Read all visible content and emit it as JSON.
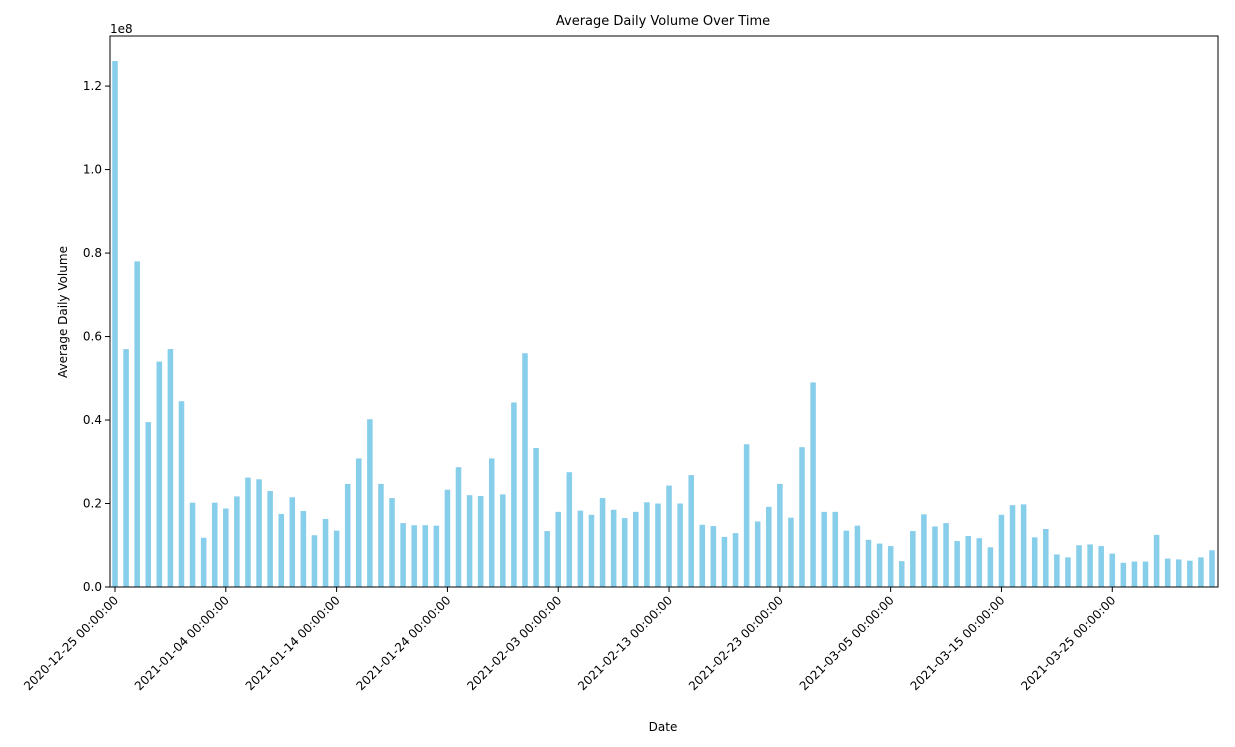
{
  "chart_data": {
    "type": "bar",
    "title": "Average Daily Volume Over Time",
    "xlabel": "Date",
    "ylabel": "Average Daily Volume",
    "y_offset_label": "1e8",
    "y_scale": 100000000,
    "ylim": [
      0,
      1.32
    ],
    "y_ticks": [
      0.0,
      0.2,
      0.4,
      0.6,
      0.8,
      1.0,
      1.2
    ],
    "y_tick_labels": [
      "0.0",
      "0.2",
      "0.4",
      "0.6",
      "0.8",
      "1.0",
      "1.2"
    ],
    "bar_color": "#87ceeb",
    "grid": false,
    "legend": "none",
    "x_tick_labels": [
      "2020-12-25 00:00:00",
      "2021-01-04 00:00:00",
      "2021-01-14 00:00:00",
      "2021-01-24 00:00:00",
      "2021-02-03 00:00:00",
      "2021-02-13 00:00:00",
      "2021-02-23 00:00:00",
      "2021-03-05 00:00:00",
      "2021-03-15 00:00:00",
      "2021-03-25 00:00:00"
    ],
    "x_tick_dates": [
      "2020-12-25",
      "2021-01-04",
      "2021-01-14",
      "2021-01-24",
      "2021-02-03",
      "2021-02-13",
      "2021-02-23",
      "2021-03-05",
      "2021-03-15",
      "2021-03-25"
    ],
    "categories": [
      "2020-12-25",
      "2020-12-26",
      "2020-12-27",
      "2020-12-28",
      "2020-12-29",
      "2020-12-30",
      "2020-12-31",
      "2021-01-01",
      "2021-01-02",
      "2021-01-03",
      "2021-01-04",
      "2021-01-05",
      "2021-01-06",
      "2021-01-07",
      "2021-01-08",
      "2021-01-09",
      "2021-01-10",
      "2021-01-11",
      "2021-01-12",
      "2021-01-13",
      "2021-01-14",
      "2021-01-15",
      "2021-01-16",
      "2021-01-17",
      "2021-01-18",
      "2021-01-19",
      "2021-01-20",
      "2021-01-21",
      "2021-01-22",
      "2021-01-23",
      "2021-01-24",
      "2021-01-25",
      "2021-01-26",
      "2021-01-27",
      "2021-01-28",
      "2021-01-29",
      "2021-01-30",
      "2021-01-31",
      "2021-02-01",
      "2021-02-02",
      "2021-02-03",
      "2021-02-04",
      "2021-02-05",
      "2021-02-06",
      "2021-02-07",
      "2021-02-08",
      "2021-02-09",
      "2021-02-10",
      "2021-02-11",
      "2021-02-12",
      "2021-02-13",
      "2021-02-14",
      "2021-02-15",
      "2021-02-16",
      "2021-02-17",
      "2021-02-18",
      "2021-02-19",
      "2021-02-20",
      "2021-02-21",
      "2021-02-22",
      "2021-02-23",
      "2021-02-24",
      "2021-02-25",
      "2021-02-26",
      "2021-02-27",
      "2021-02-28",
      "2021-03-01",
      "2021-03-02",
      "2021-03-03",
      "2021-03-04",
      "2021-03-05",
      "2021-03-06",
      "2021-03-07",
      "2021-03-08",
      "2021-03-09",
      "2021-03-10",
      "2021-03-11",
      "2021-03-12",
      "2021-03-13",
      "2021-03-14",
      "2021-03-15",
      "2021-03-16",
      "2021-03-17",
      "2021-03-18",
      "2021-03-19",
      "2021-03-20",
      "2021-03-21",
      "2021-03-22",
      "2021-03-23",
      "2021-03-24",
      "2021-03-25",
      "2021-03-26",
      "2021-03-27",
      "2021-03-28",
      "2021-03-29",
      "2021-03-30",
      "2021-03-31",
      "2021-04-01",
      "2021-04-02",
      "2021-04-03"
    ],
    "values": [
      1.26,
      0.57,
      0.78,
      0.395,
      0.54,
      0.57,
      0.445,
      0.202,
      0.118,
      0.202,
      0.188,
      0.217,
      0.262,
      0.258,
      0.23,
      0.175,
      0.215,
      0.182,
      0.124,
      0.163,
      0.135,
      0.247,
      0.308,
      0.402,
      0.247,
      0.213,
      0.153,
      0.148,
      0.148,
      0.147,
      0.233,
      0.287,
      0.22,
      0.218,
      0.308,
      0.222,
      0.442,
      0.56,
      0.333,
      0.134,
      0.18,
      0.275,
      0.183,
      0.173,
      0.213,
      0.185,
      0.165,
      0.18,
      0.203,
      0.2,
      0.243,
      0.2,
      0.268,
      0.149,
      0.146,
      0.12,
      0.129,
      0.342,
      0.157,
      0.192,
      0.247,
      0.166,
      0.335,
      0.49,
      0.18,
      0.18,
      0.135,
      0.147,
      0.113,
      0.104,
      0.098,
      0.062,
      0.134,
      0.174,
      0.145,
      0.153,
      0.11,
      0.122,
      0.117,
      0.095,
      0.173,
      0.196,
      0.198,
      0.119,
      0.139,
      0.078,
      0.071,
      0.1,
      0.102,
      0.098,
      0.08,
      0.058,
      0.061,
      0.061,
      0.125,
      0.068,
      0.066,
      0.063,
      0.071,
      0.088
    ]
  }
}
